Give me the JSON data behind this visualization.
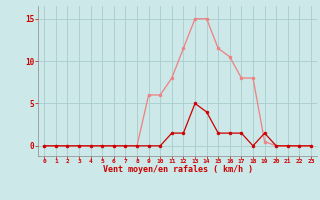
{
  "x": [
    0,
    1,
    2,
    3,
    4,
    5,
    6,
    7,
    8,
    9,
    10,
    11,
    12,
    13,
    14,
    15,
    16,
    17,
    18,
    19,
    20,
    21,
    22,
    23
  ],
  "rafales": [
    0,
    0,
    0,
    0,
    0,
    0,
    0,
    0,
    0,
    6,
    6,
    8,
    11.5,
    15,
    15,
    11.5,
    10.5,
    8,
    8,
    0.5,
    0,
    0,
    0,
    0
  ],
  "moyen": [
    0,
    0,
    0,
    0,
    0,
    0,
    0,
    0,
    0,
    0,
    0,
    1.5,
    1.5,
    5,
    4,
    1.5,
    1.5,
    1.5,
    0,
    1.5,
    0,
    0,
    0,
    0
  ],
  "color_rafales": "#f08080",
  "color_moyen": "#cc0000",
  "bg_color": "#cce8e8",
  "grid_color": "#aacccc",
  "xlabel": "Vent moyen/en rafales ( km/h )",
  "ylabel_ticks": [
    0,
    5,
    10,
    15
  ],
  "xlim": [
    -0.5,
    23.5
  ],
  "ylim": [
    -1.2,
    16.5
  ],
  "xlabel_color": "#cc0000",
  "tick_color": "#cc0000",
  "spine_color": "#888888"
}
